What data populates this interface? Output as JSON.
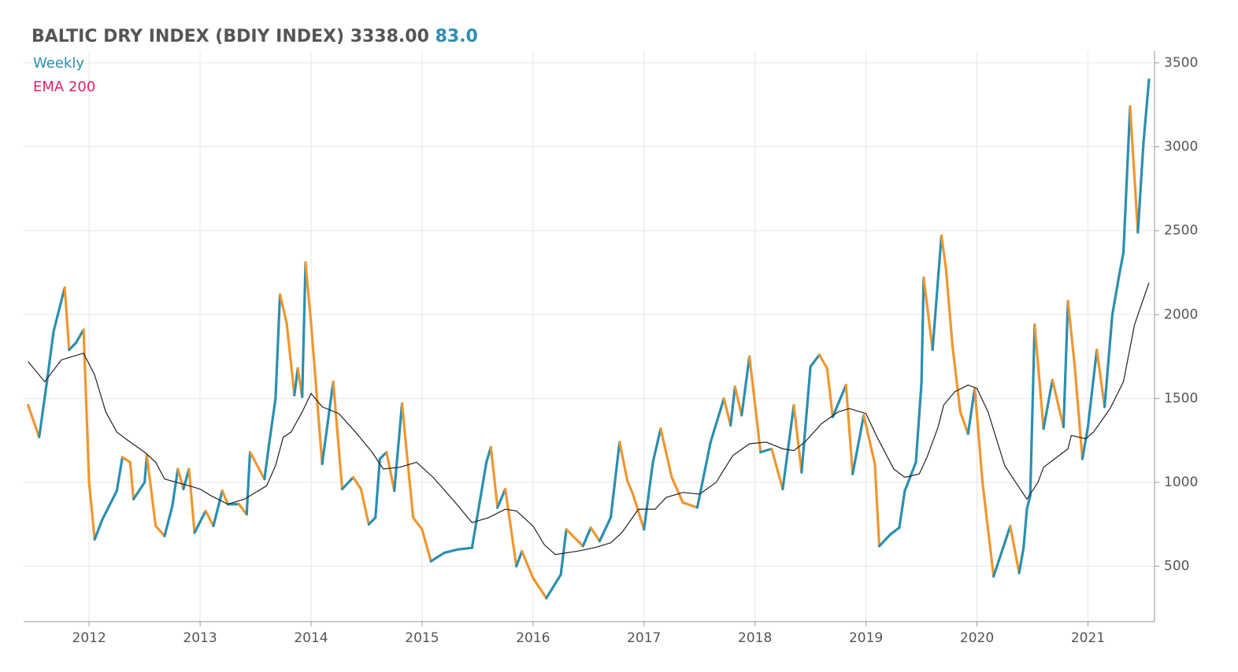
{
  "chart_data": {
    "type": "line",
    "title": "BALTIC DRY INDEX (BDIY INDEX) 3338.00",
    "change": "83.0",
    "change_color": "#2a8fb0",
    "xlim": [
      2011.41,
      2021.6
    ],
    "xticks": [
      2012,
      2013,
      2014,
      2015,
      2016,
      2017,
      2018,
      2019,
      2020,
      2021
    ],
    "ylim": [
      170,
      3570
    ],
    "yticks": [
      500,
      1000,
      1500,
      2000,
      2500,
      3000,
      3500
    ],
    "grid": true,
    "series": [
      {
        "name": "Weekly",
        "color": "#2a8fb0",
        "falling_color": "#f0962e",
        "x": [
          2011.45,
          2011.55,
          2011.62,
          2011.68,
          2011.78,
          2011.82,
          2011.88,
          2011.95,
          2012.0,
          2012.05,
          2012.12,
          2012.25,
          2012.3,
          2012.37,
          2012.4,
          2012.5,
          2012.52,
          2012.6,
          2012.68,
          2012.75,
          2012.8,
          2012.85,
          2012.9,
          2012.95,
          2013.05,
          2013.12,
          2013.2,
          2013.25,
          2013.35,
          2013.42,
          2013.45,
          2013.58,
          2013.62,
          2013.68,
          2013.72,
          2013.78,
          2013.85,
          2013.88,
          2013.92,
          2013.95,
          2014.0,
          2014.1,
          2014.2,
          2014.28,
          2014.38,
          2014.45,
          2014.52,
          2014.58,
          2014.62,
          2014.68,
          2014.75,
          2014.82,
          2014.85,
          2014.92,
          2015.0,
          2015.08,
          2015.2,
          2015.32,
          2015.45,
          2015.58,
          2015.62,
          2015.68,
          2015.75,
          2015.85,
          2015.9,
          2016.0,
          2016.12,
          2016.25,
          2016.3,
          2016.45,
          2016.52,
          2016.6,
          2016.7,
          2016.78,
          2016.85,
          2016.9,
          2017.0,
          2017.08,
          2017.15,
          2017.25,
          2017.35,
          2017.48,
          2017.6,
          2017.72,
          2017.78,
          2017.82,
          2017.88,
          2017.95,
          2018.05,
          2018.15,
          2018.25,
          2018.35,
          2018.42,
          2018.5,
          2018.58,
          2018.65,
          2018.7,
          2018.82,
          2018.88,
          2018.98,
          2019.08,
          2019.12,
          2019.22,
          2019.3,
          2019.35,
          2019.45,
          2019.5,
          2019.52,
          2019.6,
          2019.68,
          2019.72,
          2019.78,
          2019.85,
          2019.92,
          2019.98,
          2020.05,
          2020.15,
          2020.22,
          2020.3,
          2020.38,
          2020.42,
          2020.45,
          2020.48,
          2020.52,
          2020.6,
          2020.68,
          2020.78,
          2020.82,
          2020.88,
          2020.95,
          2021.0,
          2021.08,
          2021.15,
          2021.22,
          2021.28,
          2021.32,
          2021.38,
          2021.45,
          2021.5,
          2021.55
        ],
        "values": [
          1460,
          1270,
          1600,
          1900,
          2160,
          1790,
          1830,
          1910,
          1000,
          660,
          780,
          950,
          1150,
          1120,
          900,
          1000,
          1160,
          740,
          680,
          860,
          1080,
          960,
          1080,
          700,
          830,
          740,
          950,
          870,
          870,
          810,
          1180,
          1020,
          1220,
          1500,
          2120,
          1950,
          1520,
          1680,
          1510,
          2310,
          1950,
          1110,
          1600,
          960,
          1030,
          960,
          750,
          790,
          1140,
          1180,
          950,
          1470,
          1260,
          790,
          720,
          530,
          580,
          600,
          610,
          1120,
          1210,
          850,
          960,
          500,
          590,
          430,
          310,
          450,
          720,
          620,
          730,
          650,
          790,
          1240,
          1010,
          930,
          720,
          1120,
          1320,
          1030,
          880,
          850,
          1240,
          1500,
          1340,
          1570,
          1400,
          1750,
          1180,
          1200,
          960,
          1460,
          1060,
          1690,
          1760,
          1680,
          1390,
          1580,
          1050,
          1400,
          1110,
          620,
          690,
          730,
          950,
          1120,
          1590,
          2220,
          1790,
          2470,
          2280,
          1810,
          1420,
          1290,
          1560,
          1000,
          440,
          580,
          740,
          460,
          610,
          840,
          920,
          1940,
          1320,
          1610,
          1330,
          2080,
          1700,
          1140,
          1330,
          1790,
          1450,
          2000,
          2230,
          2370,
          3240,
          2490,
          3020,
          3400
        ]
      },
      {
        "name": "EMA 200",
        "color": "#e0245e",
        "line_color": "#222222",
        "x": [
          2011.45,
          2011.6,
          2011.75,
          2011.95,
          2012.05,
          2012.15,
          2012.25,
          2012.35,
          2012.5,
          2012.6,
          2012.68,
          2012.9,
          2013.0,
          2013.1,
          2013.25,
          2013.4,
          2013.6,
          2013.68,
          2013.75,
          2013.82,
          2013.92,
          2014.0,
          2014.1,
          2014.25,
          2014.4,
          2014.55,
          2014.65,
          2014.8,
          2014.95,
          2015.1,
          2015.3,
          2015.45,
          2015.6,
          2015.75,
          2015.85,
          2016.0,
          2016.1,
          2016.2,
          2016.4,
          2016.55,
          2016.7,
          2016.8,
          2016.95,
          2017.1,
          2017.2,
          2017.35,
          2017.5,
          2017.65,
          2017.8,
          2017.95,
          2018.1,
          2018.25,
          2018.35,
          2018.45,
          2018.6,
          2018.75,
          2018.85,
          2019.0,
          2019.1,
          2019.25,
          2019.35,
          2019.48,
          2019.55,
          2019.65,
          2019.7,
          2019.8,
          2019.92,
          2020.0,
          2020.1,
          2020.25,
          2020.38,
          2020.45,
          2020.55,
          2020.6,
          2020.7,
          2020.82,
          2020.85,
          2020.98,
          2021.05,
          2021.2,
          2021.32,
          2021.42,
          2021.55
        ],
        "values": [
          1720,
          1600,
          1730,
          1770,
          1640,
          1420,
          1300,
          1250,
          1180,
          1120,
          1020,
          980,
          960,
          920,
          870,
          900,
          980,
          1100,
          1270,
          1300,
          1420,
          1530,
          1450,
          1410,
          1300,
          1180,
          1080,
          1090,
          1120,
          1030,
          880,
          760,
          790,
          840,
          830,
          740,
          630,
          570,
          590,
          610,
          640,
          700,
          840,
          840,
          910,
          940,
          930,
          1000,
          1160,
          1230,
          1240,
          1200,
          1190,
          1240,
          1350,
          1420,
          1440,
          1410,
          1270,
          1080,
          1030,
          1050,
          1150,
          1330,
          1460,
          1540,
          1580,
          1560,
          1420,
          1100,
          970,
          900,
          1000,
          1090,
          1140,
          1200,
          1280,
          1260,
          1300,
          1440,
          1600,
          1940,
          2190
        ]
      }
    ]
  }
}
